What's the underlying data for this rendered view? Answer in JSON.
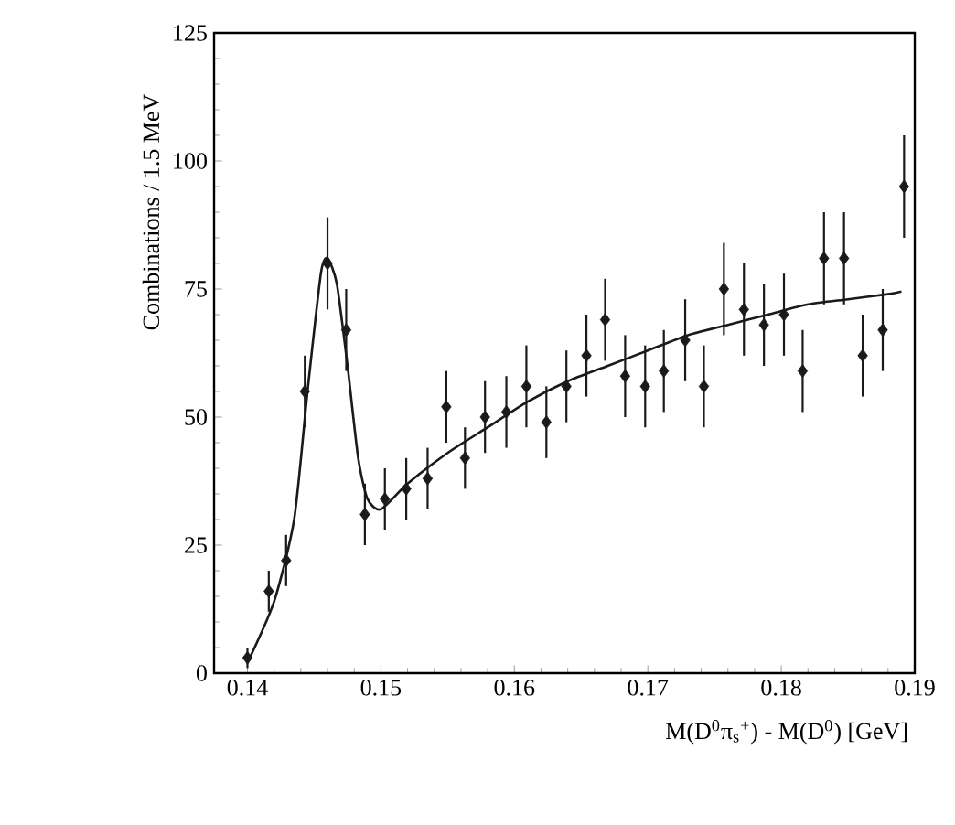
{
  "chart_data": {
    "type": "scatter",
    "xlabel": "M(D$^{0}$π$_{s}$$^{+}$) - M(D$^{0}$)   [GeV]",
    "ylabel": "Combinations / 1.5 MeV",
    "xlim": [
      0.1375,
      0.19
    ],
    "ylim": [
      0,
      125
    ],
    "xticks": [
      0.14,
      0.15,
      0.16,
      0.17,
      0.18,
      0.19
    ],
    "yticks": [
      0,
      25,
      50,
      75,
      100,
      125
    ],
    "series": [
      {
        "type": "scatter",
        "color": "#1a1a1a",
        "marker": "diamond",
        "x": [
          0.14,
          0.1416,
          0.1429,
          0.1443,
          0.146,
          0.1474,
          0.1488,
          0.1503,
          0.1519,
          0.1535,
          0.1549,
          0.1563,
          0.1578,
          0.1594,
          0.1609,
          0.1624,
          0.1639,
          0.1654,
          0.1668,
          0.1683,
          0.1698,
          0.1712,
          0.1728,
          0.1742,
          0.1757,
          0.1772,
          0.1787,
          0.1802,
          0.1816,
          0.1832,
          0.1847,
          0.1861,
          0.1876,
          0.1892
        ],
        "values": [
          3,
          16,
          22,
          55,
          80,
          67,
          31,
          34,
          36,
          38,
          52,
          42,
          50,
          51,
          56,
          49,
          56,
          62,
          69,
          58,
          56,
          59,
          65,
          56,
          75,
          71,
          68,
          70,
          59,
          81,
          81,
          62,
          67,
          95
        ],
        "errors": [
          2,
          4,
          5,
          7,
          9,
          8,
          6,
          6,
          6,
          6,
          7,
          6,
          7,
          7,
          8,
          7,
          7,
          8,
          8,
          8,
          8,
          8,
          8,
          8,
          9,
          9,
          8,
          8,
          8,
          9,
          9,
          8,
          8,
          10
        ]
      },
      {
        "type": "line",
        "color": "#1a1a1a",
        "marker": "none",
        "line_style": "solid",
        "x": [
          0.14,
          0.142,
          0.1435,
          0.1445,
          0.1455,
          0.146,
          0.1467,
          0.1475,
          0.1483,
          0.149,
          0.15,
          0.152,
          0.155,
          0.158,
          0.161,
          0.164,
          0.167,
          0.17,
          0.173,
          0.176,
          0.179,
          0.182,
          0.185,
          0.188,
          0.189
        ],
        "values": [
          2,
          14,
          30,
          55,
          78,
          81,
          76,
          60,
          42,
          34,
          32,
          37,
          43,
          48,
          53,
          57,
          60,
          63,
          66,
          68,
          70,
          72,
          73,
          74,
          74.5
        ]
      }
    ]
  }
}
